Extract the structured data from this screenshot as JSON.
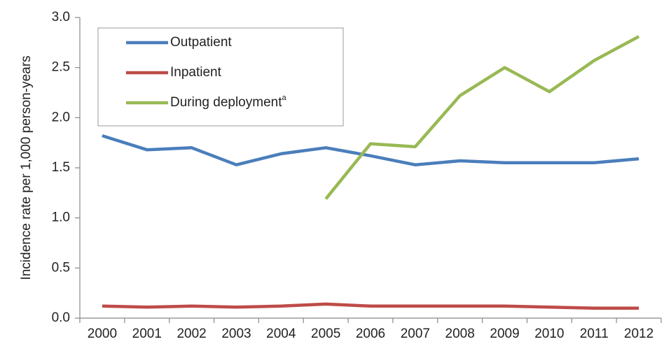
{
  "chart_data": {
    "type": "line",
    "y_label": "Incidence rate per 1,000 person-years",
    "categories": [
      "2000",
      "2001",
      "2002",
      "2003",
      "2004",
      "2005",
      "2006",
      "2007",
      "2008",
      "2009",
      "2010",
      "2011",
      "2012"
    ],
    "series": [
      {
        "name": "Outpatient",
        "color": "#4a7ebb",
        "values": [
          1.82,
          1.68,
          1.7,
          1.53,
          1.64,
          1.7,
          1.62,
          1.53,
          1.57,
          1.55,
          1.55,
          1.55,
          1.59
        ]
      },
      {
        "name": "Inpatient",
        "color": "#be4b48",
        "values": [
          0.12,
          0.11,
          0.12,
          0.11,
          0.12,
          0.14,
          0.12,
          0.12,
          0.12,
          0.12,
          0.11,
          0.1,
          0.1
        ]
      },
      {
        "name": "During deployment",
        "name_superscript": "a",
        "color": "#98b954",
        "values": [
          null,
          null,
          null,
          null,
          null,
          1.19,
          1.74,
          1.71,
          2.22,
          2.5,
          2.26,
          2.57,
          2.81
        ]
      }
    ],
    "ylim": [
      0,
      3
    ],
    "yticks": [
      {
        "value": 0,
        "label": "0.0"
      },
      0.5,
      {
        "value": 1,
        "label": "1.0"
      },
      1.5,
      {
        "value": 2,
        "label": "2.0"
      },
      2.5,
      {
        "value": 3,
        "label": "3.0"
      }
    ],
    "legend": "upper left"
  }
}
